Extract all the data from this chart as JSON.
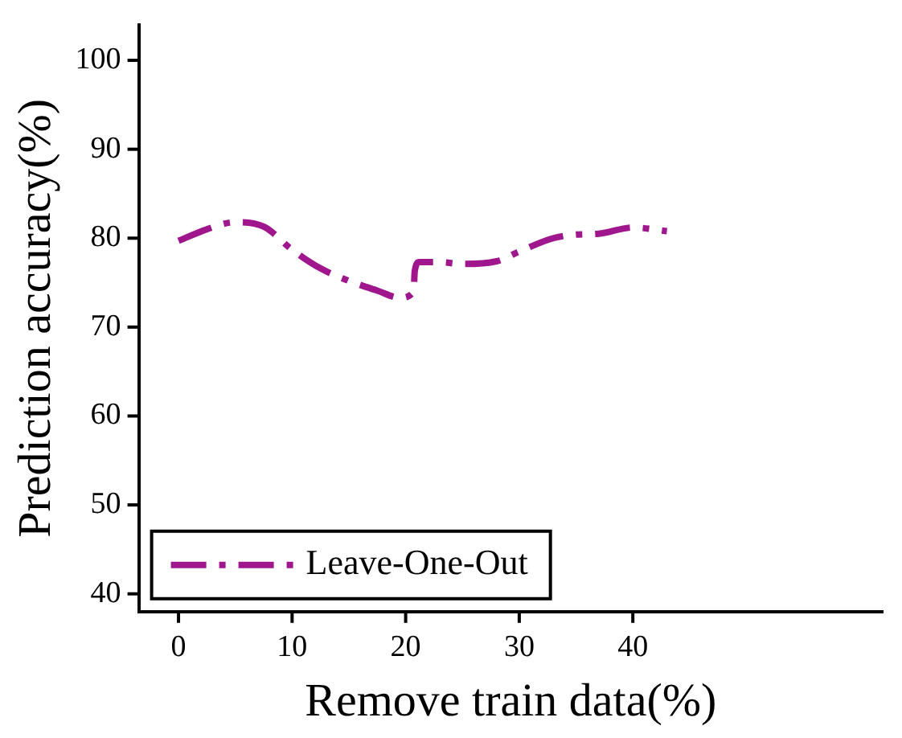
{
  "chart_data": {
    "type": "line",
    "xlabel": "Remove train data(%)",
    "ylabel": "Prediction accuracy(%)",
    "xlim": [
      -3.5,
      62
    ],
    "xticks": [
      0,
      10,
      20,
      30,
      40
    ],
    "ylim": [
      38,
      104
    ],
    "yticks": [
      40,
      50,
      60,
      70,
      80,
      90,
      100
    ],
    "grid": false,
    "legend": "bottom left",
    "marker": "none",
    "line_style": "dashed",
    "series": [
      {
        "name": "Leave-One-Out",
        "color": "#a0168c",
        "x": [
          0,
          2.5,
          5,
          7.5,
          10,
          12.5,
          15,
          17.5,
          19.5,
          20.7,
          20.8,
          21.2,
          23,
          25,
          28,
          30,
          33,
          35,
          37,
          40,
          43
        ],
        "values": [
          79.7,
          81,
          81.8,
          81.3,
          78.7,
          76.6,
          75.2,
          74.1,
          73.3,
          74,
          76.3,
          77.3,
          77.3,
          77.1,
          77.4,
          78.5,
          80,
          80.4,
          80.5,
          81.2,
          80.8
        ]
      }
    ]
  }
}
